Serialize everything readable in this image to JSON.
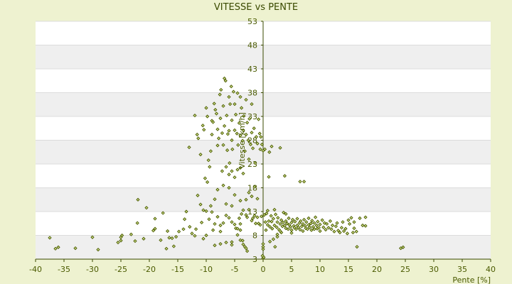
{
  "chart_data": {
    "type": "scatter",
    "title": "VITESSE vs PENTE",
    "xlabel": "Pente [%]",
    "ylabel": "Vitesse [km/h]",
    "xlim": [
      -40,
      40
    ],
    "ylim": [
      3,
      53
    ],
    "xticks": [
      -40,
      -35,
      -30,
      -25,
      -20,
      -15,
      -10,
      -5,
      0,
      5,
      10,
      15,
      20,
      25,
      30,
      35,
      40
    ],
    "yticks": [
      3,
      8,
      13,
      18,
      23,
      28,
      33,
      38,
      43,
      48,
      53
    ],
    "grid": true,
    "legend": "none",
    "colors": {
      "background": "#eef2d0",
      "band_light": "#ffffff",
      "band_dark": "#efefef",
      "marker_stroke": "#4a5a00",
      "marker_fill": "#cfe08a",
      "axis": "#3a4a00",
      "text": "#4a5a00"
    },
    "series": [
      {
        "values": [
          [
            -37.5,
            7.5
          ],
          [
            -36.5,
            5.2
          ],
          [
            -36,
            5.5
          ],
          [
            -33,
            5.3
          ],
          [
            -30,
            7.6
          ],
          [
            -29,
            5
          ],
          [
            -25.5,
            6.5
          ],
          [
            -25,
            6.9
          ],
          [
            -25,
            7.6
          ],
          [
            -24.8,
            8
          ],
          [
            -23.2,
            8.2
          ],
          [
            -22.5,
            6.8
          ],
          [
            -22.1,
            10.6
          ],
          [
            -22,
            15.5
          ],
          [
            -21,
            7.3
          ],
          [
            -20.5,
            13.8
          ],
          [
            -19.3,
            9
          ],
          [
            -19,
            9.4
          ],
          [
            -19,
            11.5
          ],
          [
            -18,
            7
          ],
          [
            -17.6,
            12.7
          ],
          [
            -17,
            5.2
          ],
          [
            -16.8,
            8.9
          ],
          [
            -16.5,
            7.5
          ],
          [
            -16,
            7.4
          ],
          [
            -15.7,
            5.7
          ],
          [
            -15.3,
            7.7
          ],
          [
            -14.8,
            8.8
          ],
          [
            -14,
            9.3
          ],
          [
            -13.8,
            11.4
          ],
          [
            -13.5,
            13
          ],
          [
            -12.9,
            9.8
          ],
          [
            -12.5,
            8.4
          ],
          [
            -12,
            7.9
          ],
          [
            -11.8,
            9.3
          ],
          [
            -11.5,
            16.4
          ],
          [
            -11,
            14.5
          ],
          [
            -10.8,
            10.7
          ],
          [
            -10.5,
            13.3
          ],
          [
            -10.5,
            7.3
          ],
          [
            -10,
            8
          ],
          [
            -10,
            13.1
          ],
          [
            -9.8,
            19.2
          ],
          [
            -9.5,
            11.4
          ],
          [
            -9.2,
            14.2
          ],
          [
            -9,
            12.9
          ],
          [
            -8.8,
            9.1
          ],
          [
            -8.5,
            10.4
          ],
          [
            -8,
            11.9
          ],
          [
            -7.5,
            8.8
          ],
          [
            -7.5,
            10.1
          ],
          [
            -7,
            10.6
          ],
          [
            -6.5,
            12.2
          ],
          [
            -6,
            11.7
          ],
          [
            -5.5,
            10.8
          ],
          [
            -5,
            10.3
          ],
          [
            -4.8,
            9.5
          ],
          [
            -4.5,
            9.4
          ],
          [
            -4,
            9.1
          ],
          [
            -3.8,
            12.5
          ],
          [
            -3.5,
            13.3
          ],
          [
            -3,
            12.3
          ],
          [
            -2.8,
            11.8
          ],
          [
            -2.5,
            13.4
          ],
          [
            -2,
            11.1
          ],
          [
            -1.8,
            11.6
          ],
          [
            -1.5,
            12.1
          ],
          [
            -1.3,
            10.5
          ],
          [
            -1,
            11.8
          ],
          [
            -0.8,
            10.5
          ],
          [
            -0.5,
            10.2
          ],
          [
            -0.3,
            12
          ],
          [
            -4.2,
            11.6
          ],
          [
            -4,
            10.4
          ],
          [
            -5.5,
            6.6
          ],
          [
            -4,
            7
          ],
          [
            -3.6,
            6.9
          ],
          [
            -3.5,
            6.1
          ],
          [
            -3.2,
            5.6
          ],
          [
            -3,
            5.3
          ],
          [
            -2.8,
            4.7
          ],
          [
            -8.5,
            5.9
          ],
          [
            -7.5,
            6.2
          ],
          [
            -6.5,
            6.5
          ],
          [
            -5.5,
            6
          ],
          [
            -4.5,
            8.1
          ],
          [
            -13,
            26.5
          ],
          [
            -12,
            33.2
          ],
          [
            -11.6,
            29.2
          ],
          [
            -11.4,
            28.4
          ],
          [
            -11,
            25
          ],
          [
            -10.6,
            31.1
          ],
          [
            -10.4,
            30.2
          ],
          [
            -10.2,
            20
          ],
          [
            -10,
            34.8
          ],
          [
            -9.8,
            33
          ],
          [
            -9.6,
            23.8
          ],
          [
            -9.4,
            22.4
          ],
          [
            -9.2,
            25.7
          ],
          [
            -9,
            29.2
          ],
          [
            -9,
            32.1
          ],
          [
            -8.8,
            31.8
          ],
          [
            -8.6,
            35.7
          ],
          [
            -8.4,
            34.4
          ],
          [
            -8.2,
            33.6
          ],
          [
            -8,
            30.3
          ],
          [
            -8,
            26.9
          ],
          [
            -7.8,
            28.4
          ],
          [
            -7.6,
            37.6
          ],
          [
            -7.5,
            32.6
          ],
          [
            -7.4,
            38.6
          ],
          [
            -7.2,
            29.5
          ],
          [
            -7,
            35.2
          ],
          [
            -7,
            27
          ],
          [
            -6.8,
            41
          ],
          [
            -6.8,
            31
          ],
          [
            -6.6,
            40.5
          ],
          [
            -6.4,
            33.2
          ],
          [
            -6.3,
            25.9
          ],
          [
            -6.2,
            29.3
          ],
          [
            -6,
            37.1
          ],
          [
            -6,
            30
          ],
          [
            -5.9,
            23.2
          ],
          [
            -5.8,
            35.6
          ],
          [
            -5.6,
            39.3
          ],
          [
            -5.5,
            28
          ],
          [
            -5.5,
            32.2
          ],
          [
            -5.4,
            26.1
          ],
          [
            -5.2,
            38.2
          ],
          [
            -5,
            35.6
          ],
          [
            -5,
            30.1
          ],
          [
            -4.8,
            33.4
          ],
          [
            -4.6,
            29.4
          ],
          [
            -4.5,
            37.9
          ],
          [
            -4.4,
            27
          ],
          [
            -4.2,
            31.6
          ],
          [
            -4,
            37.1
          ],
          [
            -4,
            29
          ],
          [
            -3.8,
            34.8
          ],
          [
            -3.6,
            27.9
          ],
          [
            -3.5,
            30.1
          ],
          [
            -3.4,
            33.1
          ],
          [
            -3.2,
            25.7
          ],
          [
            -3,
            36.5
          ],
          [
            -3,
            29.2
          ],
          [
            -2.8,
            31.7
          ],
          [
            -2.6,
            28
          ],
          [
            -2.5,
            24
          ],
          [
            -2.4,
            32.5
          ],
          [
            -2.2,
            27.1
          ],
          [
            -2,
            29.6
          ],
          [
            -2,
            35.6
          ],
          [
            -1.8,
            26.3
          ],
          [
            -1.6,
            30.5
          ],
          [
            -1.4,
            23.2
          ],
          [
            -1.2,
            28.7
          ],
          [
            -1,
            27.3
          ],
          [
            -0.8,
            32.4
          ],
          [
            -0.6,
            29.4
          ],
          [
            -0.5,
            26.1
          ],
          [
            -0.4,
            28.7
          ],
          [
            -0.2,
            27.1
          ],
          [
            -7.2,
            21.5
          ],
          [
            -6.5,
            22.4
          ],
          [
            -6,
            20.8
          ],
          [
            -5.5,
            21.5
          ],
          [
            -5,
            20.2
          ],
          [
            -4.5,
            21.8
          ],
          [
            -4,
            22.2
          ],
          [
            -3.5,
            21
          ],
          [
            -7,
            18.5
          ],
          [
            -6,
            18
          ],
          [
            -5,
            16.5
          ],
          [
            -4,
            15.3
          ],
          [
            -3,
            15.5
          ],
          [
            -2.5,
            17
          ],
          [
            -2,
            16.2
          ],
          [
            -1,
            15.7
          ],
          [
            -1.5,
            18.2
          ],
          [
            -8,
            17.6
          ],
          [
            -8.5,
            15.6
          ],
          [
            -6.5,
            14.6
          ],
          [
            -5.5,
            14.2
          ],
          [
            0.2,
            12.3
          ],
          [
            0.4,
            10.8
          ],
          [
            0.5,
            9.1
          ],
          [
            0.6,
            12.6
          ],
          [
            0.8,
            10.2
          ],
          [
            1,
            11
          ],
          [
            1.2,
            9.8
          ],
          [
            1.4,
            12.1
          ],
          [
            1.5,
            10.9
          ],
          [
            1.6,
            9.4
          ],
          [
            1.8,
            11.5
          ],
          [
            2,
            10.1
          ],
          [
            2.2,
            12.4
          ],
          [
            2.4,
            9.7
          ],
          [
            2.5,
            10.8
          ],
          [
            2.6,
            11.7
          ],
          [
            2.8,
            9.2
          ],
          [
            3,
            10.4
          ],
          [
            3.2,
            11.2
          ],
          [
            3.4,
            9.9
          ],
          [
            3.5,
            10.7
          ],
          [
            3.6,
            12.8
          ],
          [
            3.8,
            10.1
          ],
          [
            4,
            9.5
          ],
          [
            4,
            11
          ],
          [
            4.2,
            10.5
          ],
          [
            4.4,
            9.3
          ],
          [
            4.5,
            11.6
          ],
          [
            4.6,
            10.2
          ],
          [
            4.8,
            9.8
          ],
          [
            5,
            10.7
          ],
          [
            5,
            9.1
          ],
          [
            5.2,
            11.3
          ],
          [
            5.4,
            10
          ],
          [
            5.5,
            9.6
          ],
          [
            5.6,
            10.9
          ],
          [
            5.8,
            9.3
          ],
          [
            6,
            11.5
          ],
          [
            6,
            10.1
          ],
          [
            6.2,
            9.7
          ],
          [
            6.4,
            10.6
          ],
          [
            6.5,
            9.2
          ],
          [
            6.6,
            11
          ],
          [
            6.8,
            9.9
          ],
          [
            7,
            10.4
          ],
          [
            7,
            8.9
          ],
          [
            7.2,
            11.3
          ],
          [
            7.4,
            10
          ],
          [
            7.5,
            9.5
          ],
          [
            7.6,
            10.8
          ],
          [
            7.8,
            9.3
          ],
          [
            8,
            11.6
          ],
          [
            8,
            10.2
          ],
          [
            8.2,
            9.7
          ],
          [
            8.4,
            10.5
          ],
          [
            8.5,
            9.1
          ],
          [
            8.6,
            11.1
          ],
          [
            8.8,
            9.8
          ],
          [
            9,
            10.6
          ],
          [
            9,
            9.3
          ],
          [
            9.2,
            11.8
          ],
          [
            9.4,
            10.1
          ],
          [
            9.5,
            9.4
          ],
          [
            9.6,
            10.9
          ],
          [
            9.8,
            9.6
          ],
          [
            10,
            10.3
          ],
          [
            10,
            8.9
          ],
          [
            10.4,
            11.2
          ],
          [
            10.6,
            9.7
          ],
          [
            10.8,
            10.6
          ],
          [
            11,
            9.2
          ],
          [
            11.2,
            10.4
          ],
          [
            11.5,
            9.6
          ],
          [
            11.8,
            11
          ],
          [
            12,
            9.3
          ],
          [
            12.2,
            10.1
          ],
          [
            12.5,
            8.8
          ],
          [
            12.8,
            9.9
          ],
          [
            13,
            10.6
          ],
          [
            13.2,
            9
          ],
          [
            13.5,
            8.6
          ],
          [
            13.8,
            9.6
          ],
          [
            14,
            10.8
          ],
          [
            14.2,
            8.9
          ],
          [
            14.5,
            9.4
          ],
          [
            14.8,
            8.4
          ],
          [
            15,
            11.2
          ],
          [
            15.2,
            10.4
          ],
          [
            15.5,
            11.7
          ],
          [
            15.8,
            8.6
          ],
          [
            16,
            10.8
          ],
          [
            16,
            9.5
          ],
          [
            16.4,
            8.8
          ],
          [
            17,
            11.6
          ],
          [
            17.5,
            10.1
          ],
          [
            18,
            11.8
          ],
          [
            18,
            10
          ],
          [
            1.2,
            6.7
          ],
          [
            1.8,
            7.2
          ],
          [
            2.5,
            8.2
          ],
          [
            3.2,
            8.6
          ],
          [
            2.1,
            5.6
          ],
          [
            6.5,
            19.3
          ],
          [
            7.2,
            19.3
          ],
          [
            3.8,
            20.5
          ],
          [
            1,
            20.3
          ],
          [
            1.1,
            25.5
          ],
          [
            1.5,
            26.7
          ],
          [
            3,
            26.4
          ],
          [
            0,
            25.8
          ],
          [
            0.3,
            26.1
          ],
          [
            16.5,
            5.6
          ],
          [
            24.2,
            5.3
          ],
          [
            24.6,
            5.5
          ],
          [
            0,
            5.1
          ],
          [
            0,
            5.6
          ],
          [
            0,
            6.2
          ],
          [
            0,
            3.2
          ],
          [
            0.1,
            3.4
          ],
          [
            -0.1,
            3.7
          ],
          [
            0.8,
            13.2
          ],
          [
            2,
            13.4
          ],
          [
            4,
            12.5
          ],
          [
            3,
            8.9
          ],
          [
            5,
            8.5
          ],
          [
            2.5,
            7.7
          ]
        ]
      }
    ]
  }
}
